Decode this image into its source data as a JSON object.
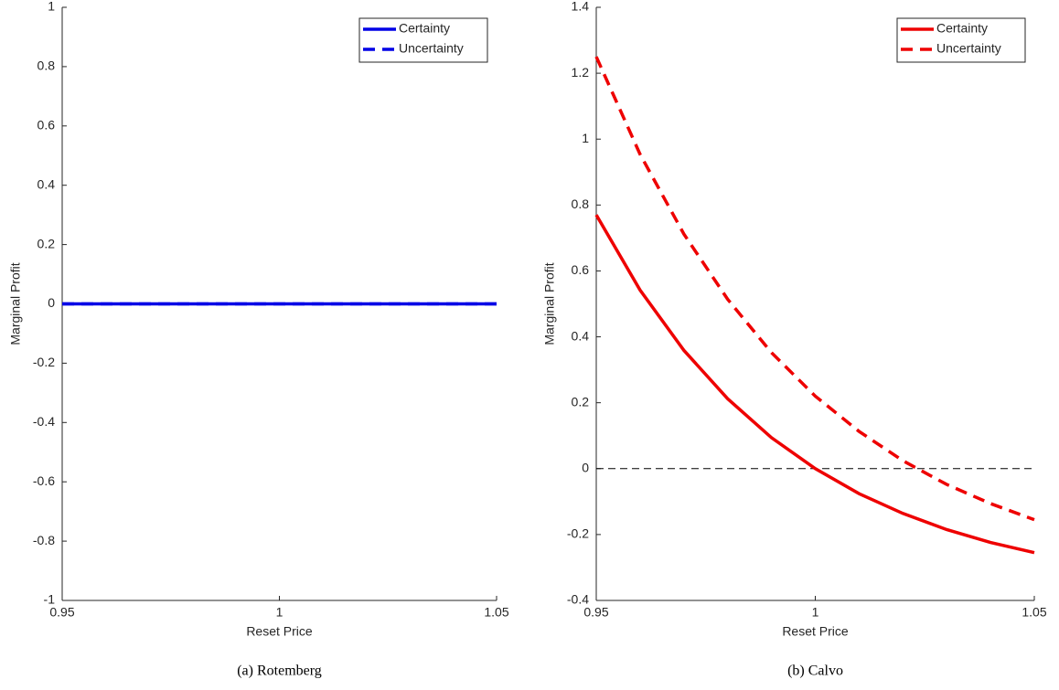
{
  "chart_data": [
    {
      "type": "line",
      "caption": "(a) Rotemberg",
      "xlabel": "Reset Price",
      "ylabel": "Marginal Profit",
      "x": [
        0.95,
        0.96,
        0.97,
        0.98,
        0.99,
        1.0,
        1.01,
        1.02,
        1.03,
        1.04,
        1.05
      ],
      "series": [
        {
          "name": "Certainty",
          "color": "#0000e6",
          "dash": false,
          "values": [
            0,
            0,
            0,
            0,
            0,
            0,
            0,
            0,
            0,
            0,
            0
          ]
        },
        {
          "name": "Uncertainty",
          "color": "#0000e6",
          "dash": true,
          "values": [
            0,
            0,
            0,
            0,
            0,
            0,
            0,
            0,
            0,
            0,
            0
          ]
        }
      ],
      "xlim": [
        0.95,
        1.05
      ],
      "xticks": [
        0.95,
        1,
        1.05
      ],
      "ylim": [
        -1,
        1
      ],
      "yticks": [
        -1,
        -0.8,
        -0.6,
        -0.4,
        -0.2,
        0,
        0.2,
        0.4,
        0.6,
        0.8,
        1
      ],
      "legend": "upper-right"
    },
    {
      "type": "line",
      "caption": "(b) Calvo",
      "xlabel": "Reset Price",
      "ylabel": "Marginal Profit",
      "x": [
        0.95,
        0.96,
        0.97,
        0.98,
        0.99,
        1.0,
        1.01,
        1.02,
        1.03,
        1.04,
        1.05
      ],
      "series": [
        {
          "name": "Certainty",
          "color": "#ee0000",
          "dash": false,
          "values": [
            0.77,
            0.542,
            0.359,
            0.212,
            0.094,
            0.0,
            -0.076,
            -0.136,
            -0.185,
            -0.224,
            -0.255
          ]
        },
        {
          "name": "Uncertainty",
          "color": "#ee0000",
          "dash": true,
          "values": [
            1.25,
            0.954,
            0.712,
            0.514,
            0.352,
            0.22,
            0.113,
            0.024,
            -0.048,
            -0.106,
            -0.155
          ]
        }
      ],
      "reference_line": 0,
      "xlim": [
        0.95,
        1.05
      ],
      "xticks": [
        0.95,
        1,
        1.05
      ],
      "ylim": [
        -0.4,
        1.4
      ],
      "yticks": [
        -0.4,
        -0.2,
        0,
        0.2,
        0.4,
        0.6,
        0.8,
        1,
        1.2,
        1.4
      ],
      "legend": "upper-right"
    }
  ]
}
